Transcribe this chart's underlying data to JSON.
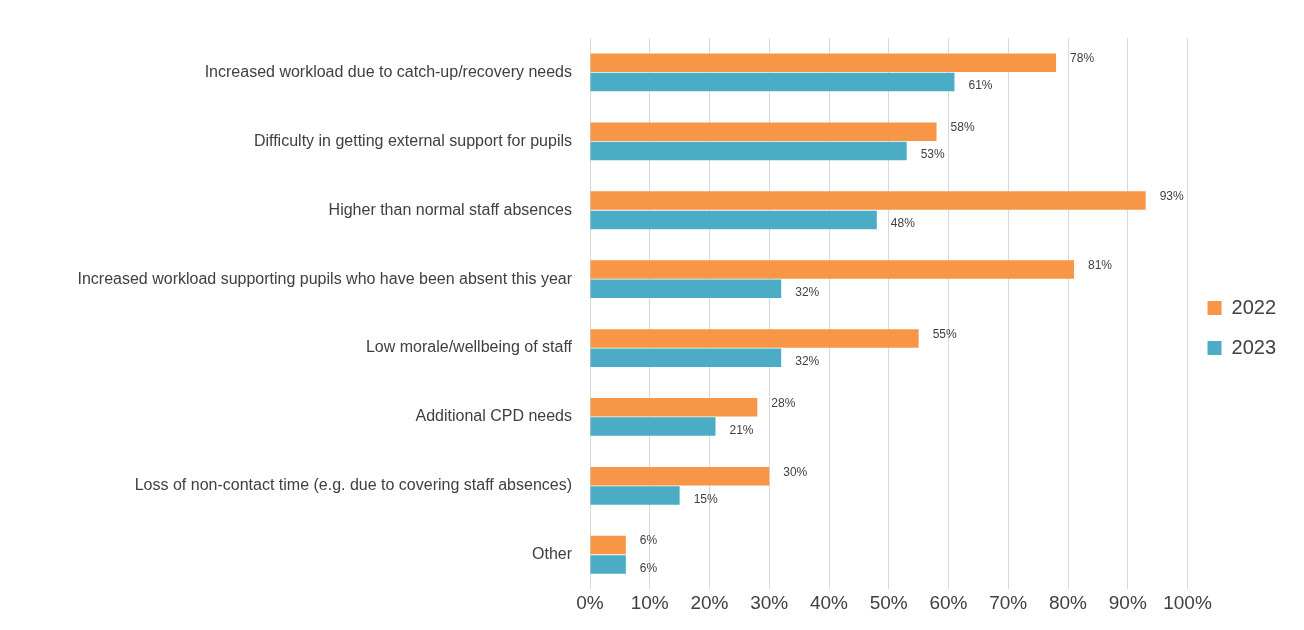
{
  "chart_data": {
    "type": "bar",
    "orientation": "horizontal",
    "categories": [
      "Increased workload due to catch-up/recovery needs",
      "Difficulty in getting external support for pupils",
      "Higher than normal staff absences",
      "Increased workload supporting pupils who have been absent this year",
      "Low morale/wellbeing of staff",
      "Additional CPD needs",
      "Loss of non-contact time (e.g. due to covering staff absences)",
      "Other"
    ],
    "series": [
      {
        "name": "2022",
        "color": "#f79646",
        "values": [
          78,
          58,
          93,
          81,
          55,
          28,
          30,
          6
        ],
        "value_labels": [
          "78%",
          "58%",
          "93%",
          "81%",
          "55%",
          "28%",
          "30%",
          "6%"
        ]
      },
      {
        "name": "2023",
        "color": "#4bacc6",
        "values": [
          61,
          53,
          48,
          32,
          32,
          21,
          15,
          6
        ],
        "value_labels": [
          "61%",
          "53%",
          "48%",
          "32%",
          "32%",
          "21%",
          "15%",
          "6%"
        ]
      }
    ],
    "xlim": [
      0,
      100
    ],
    "xticks": [
      {
        "value": 0,
        "label": "0%"
      },
      {
        "value": 10,
        "label": "10%"
      },
      {
        "value": 20,
        "label": "20%"
      },
      {
        "value": 30,
        "label": "30%"
      },
      {
        "value": 40,
        "label": "40%"
      },
      {
        "value": 50,
        "label": "50%"
      },
      {
        "value": 60,
        "label": "60%"
      },
      {
        "value": 70,
        "label": "70%"
      },
      {
        "value": 80,
        "label": "80%"
      },
      {
        "value": 90,
        "label": "90%"
      },
      {
        "value": 100,
        "label": "100%"
      }
    ],
    "grid": "x",
    "legend": "right"
  }
}
